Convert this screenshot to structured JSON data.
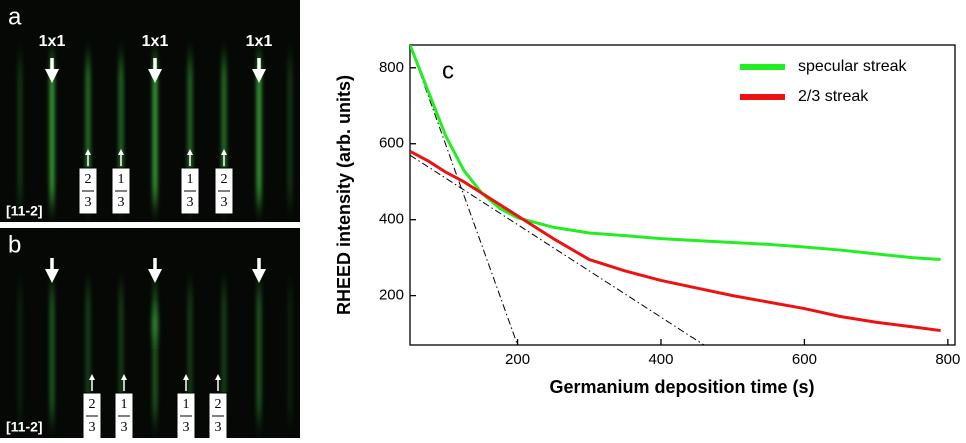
{
  "panels": [
    {
      "label": "a",
      "direction": "[11-2]",
      "top_labels": [
        "1x1",
        "1x1",
        "1x1"
      ],
      "fractions": [
        {
          "num": "2",
          "den": "3"
        },
        {
          "num": "1",
          "den": "3"
        },
        {
          "num": "1",
          "den": "3"
        },
        {
          "num": "2",
          "den": "3"
        }
      ]
    },
    {
      "label": "b",
      "direction": "[11-2]",
      "fractions": [
        {
          "num": "2",
          "den": "3"
        },
        {
          "num": "1",
          "den": "3"
        },
        {
          "num": "1",
          "den": "3"
        },
        {
          "num": "2",
          "den": "3"
        }
      ]
    }
  ],
  "chart_data": {
    "type": "line",
    "annotation": "c",
    "xlabel": "Germanium deposition time (s)",
    "ylabel": "RHEED intensity (arb. units)",
    "xlim": [
      50,
      810
    ],
    "ylim": [
      70,
      860
    ],
    "xticks": [
      200,
      400,
      600,
      800
    ],
    "yticks": [
      200,
      400,
      600,
      800
    ],
    "legend": "upper right",
    "series": [
      {
        "name": "specular streak",
        "color": "#22ee22",
        "x": [
          50,
          75,
          100,
          125,
          150,
          175,
          200,
          250,
          300,
          350,
          400,
          450,
          500,
          550,
          600,
          650,
          700,
          750,
          790
        ],
        "values": [
          860,
          740,
          620,
          530,
          470,
          430,
          405,
          380,
          365,
          358,
          350,
          345,
          340,
          335,
          328,
          320,
          310,
          300,
          295
        ]
      },
      {
        "name": "2/3 streak",
        "color": "#ee1111",
        "x": [
          50,
          75,
          100,
          125,
          150,
          175,
          200,
          250,
          300,
          350,
          400,
          450,
          500,
          550,
          600,
          650,
          700,
          750,
          790
        ],
        "values": [
          580,
          555,
          525,
          500,
          470,
          440,
          410,
          350,
          295,
          265,
          240,
          220,
          200,
          183,
          166,
          145,
          130,
          118,
          108
        ]
      }
    ],
    "guides": [
      {
        "color": "#000000",
        "x": [
          50,
          200
        ],
        "values": [
          860,
          70
        ]
      },
      {
        "color": "#000000",
        "x": [
          50,
          460
        ],
        "values": [
          570,
          70
        ]
      }
    ]
  }
}
